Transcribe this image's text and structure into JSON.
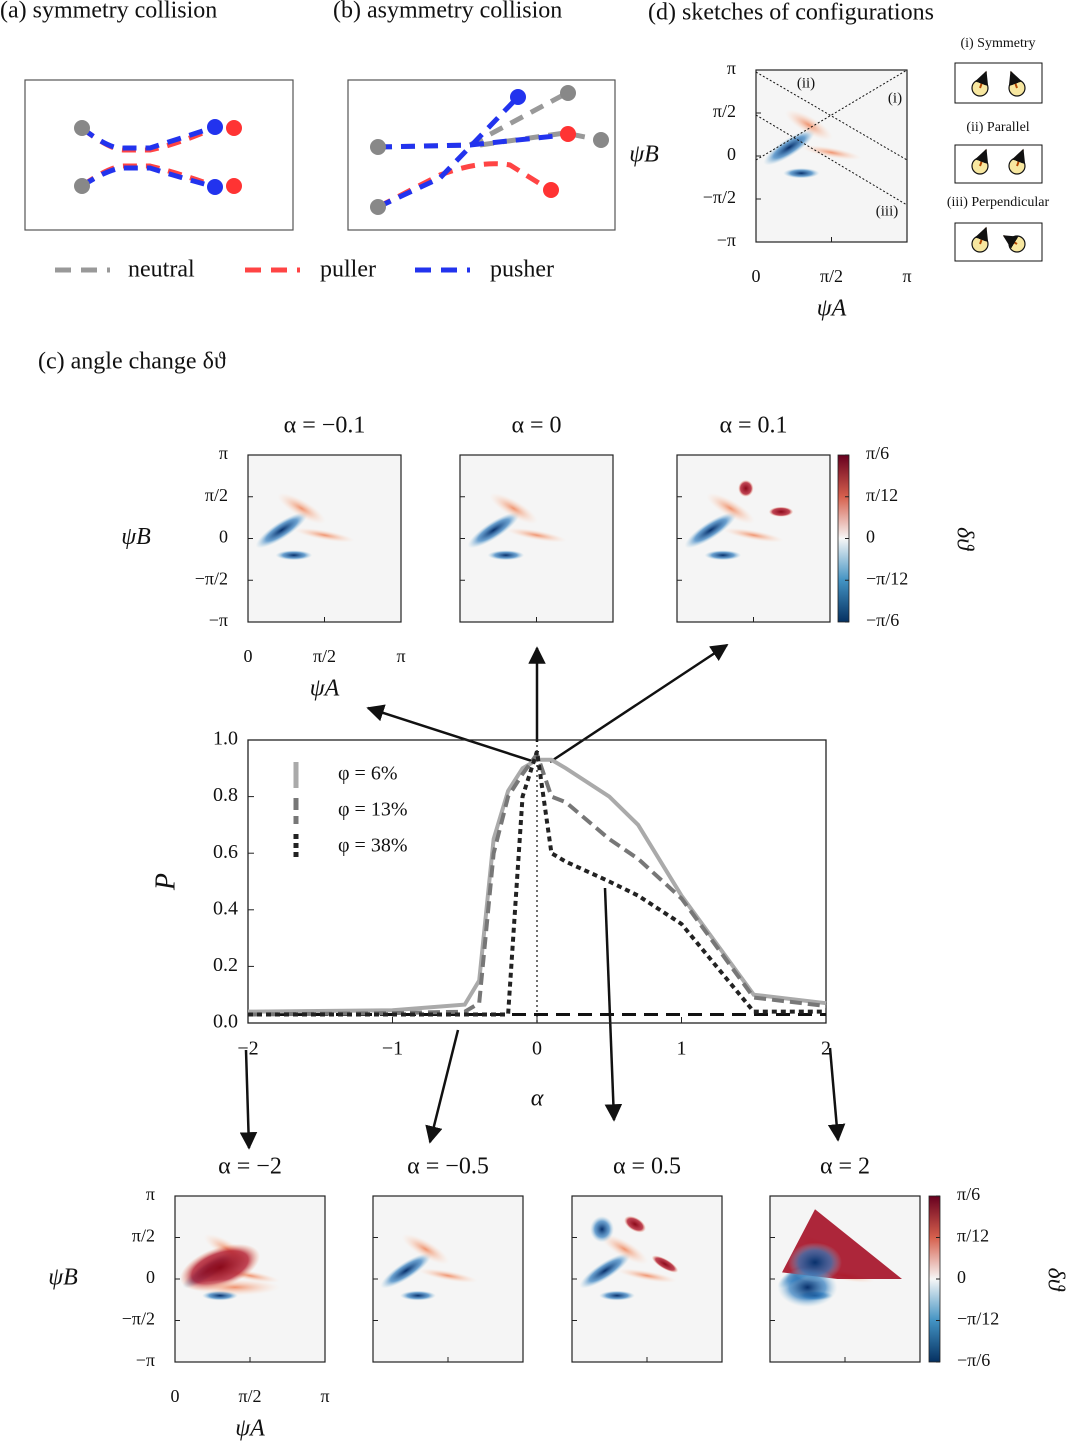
{
  "panels": {
    "a": "(a) symmetry collision",
    "b": "(b) asymmetry collision",
    "c": "(c) angle change δϑ",
    "d": "(d) sketches of configurations"
  },
  "trajectory_legend": [
    {
      "name": "neutral",
      "color": "#999999"
    },
    {
      "name": "puller",
      "color": "#ff4444"
    },
    {
      "name": "pusher",
      "color": "#2233ee"
    }
  ],
  "sketches": {
    "labels": [
      "(i) Symmetry",
      "(ii) Parallel",
      "(iii) Perpendicular"
    ],
    "map_labels": [
      "(ii)",
      "(i)",
      "(iii)"
    ]
  },
  "heatmaps": {
    "xlabel": "ψA",
    "ylabel": "ψB",
    "xlim": [
      0,
      3.1416
    ],
    "ylim": [
      -3.1416,
      3.1416
    ],
    "xticks": [
      0,
      {
        "value": 1.5708,
        "label": "π/2"
      },
      {
        "value": 3.1416,
        "label": "π"
      }
    ],
    "yticks": [
      {
        "value": 3.1416,
        "label": "π"
      },
      {
        "value": 1.5708,
        "label": "π/2"
      },
      0,
      {
        "value": -1.5708,
        "label": "−π/2"
      },
      {
        "value": -3.1416,
        "label": "−π"
      }
    ],
    "colorbar": {
      "label": "δϑ",
      "lim": [
        -0.5236,
        0.5236
      ],
      "ticks": [
        {
          "value": 0.5236,
          "label": "π/6"
        },
        {
          "value": 0.2618,
          "label": "π/12"
        },
        0,
        {
          "value": -0.2618,
          "label": "−π/12"
        },
        {
          "value": -0.5236,
          "label": "−π/6"
        }
      ]
    },
    "titles": [
      "α = −0.1",
      "α = 0",
      "α = 0.1",
      "α = −2",
      "α = −0.5",
      "α = 0.5",
      "α = 2"
    ]
  },
  "chart_data": {
    "type": "line",
    "xlabel": "α",
    "ylabel": "P",
    "xlim": [
      -2,
      2
    ],
    "ylim": [
      0,
      1
    ],
    "xticks": [
      {
        "value": -2,
        "label": "−2"
      },
      {
        "value": -1,
        "label": "−1"
      },
      0,
      1,
      2
    ],
    "yticks": [
      {
        "value": 0,
        "label": "0.0"
      },
      0.2,
      0.4,
      0.6,
      0.8,
      {
        "value": 1,
        "label": "1.0"
      }
    ],
    "x": [
      -2,
      -1,
      -0.5,
      -0.4,
      -0.3,
      -0.2,
      -0.1,
      0,
      0.1,
      0.2,
      0.5,
      0.7,
      1,
      1.5,
      2
    ],
    "series": [
      {
        "name": "φ = 6%",
        "color": "#aaaaaa",
        "style": "solid",
        "values": [
          0.04,
          0.045,
          0.065,
          0.15,
          0.65,
          0.82,
          0.9,
          0.93,
          0.93,
          0.9,
          0.8,
          0.7,
          0.45,
          0.1,
          0.07
        ]
      },
      {
        "name": "φ = 13%",
        "color": "#777777",
        "style": "dashed",
        "values": [
          0.03,
          0.035,
          0.04,
          0.07,
          0.6,
          0.8,
          0.88,
          0.95,
          0.8,
          0.78,
          0.65,
          0.58,
          0.44,
          0.09,
          0.06
        ]
      },
      {
        "name": "φ = 38%",
        "color": "#222222",
        "style": "dotted",
        "values": [
          0.03,
          0.03,
          0.03,
          0.03,
          0.03,
          0.03,
          0.8,
          0.96,
          0.6,
          0.57,
          0.5,
          0.45,
          0.35,
          0.04,
          0.04
        ]
      }
    ],
    "hline": 0.03,
    "vline": 0
  }
}
